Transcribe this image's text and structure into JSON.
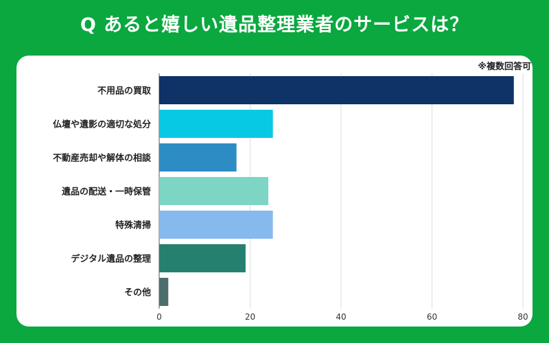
{
  "header": {
    "title": "Q あると嬉しい遺品整理業者のサービスは？"
  },
  "note": "※複数回答可",
  "colors": {
    "background": "#0aa83f",
    "card": "#ffffff"
  },
  "chart_data": {
    "type": "bar",
    "orientation": "horizontal",
    "categories": [
      "不用品の買取",
      "仏壇や遺影の適切な処分",
      "不動産売却や解体の相談",
      "遺品の配送・一時保管",
      "特殊清掃",
      "デジタル遺品の整理",
      "その他"
    ],
    "values": [
      78,
      25,
      17,
      24,
      25,
      19,
      2
    ],
    "bar_colors": [
      "#0e3367",
      "#07c9e3",
      "#2e8cc4",
      "#7dd6c4",
      "#86b9ee",
      "#26806f",
      "#4c6f6c"
    ],
    "xlim": [
      0,
      80
    ],
    "xticks": [
      0,
      20,
      40,
      60,
      80
    ],
    "grid": true,
    "legend": "none"
  }
}
